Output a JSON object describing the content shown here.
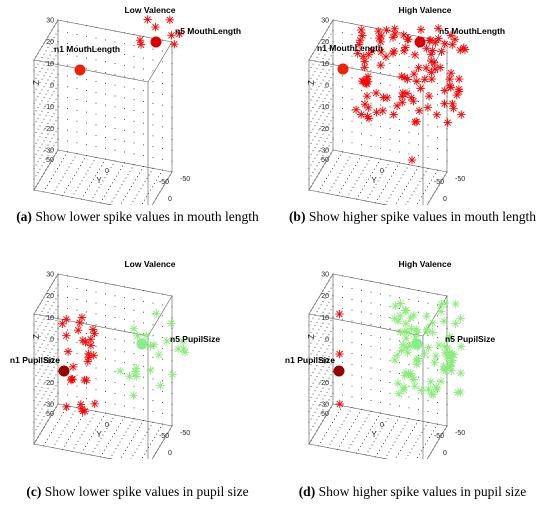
{
  "chart_data": [
    {
      "type": "scatter",
      "panel_label": "(a)",
      "caption": "Show lower spike values in mouth length",
      "title": "Low Valence",
      "xlabel": "X",
      "ylabel": "Y",
      "zlabel": "Z",
      "xlim": [
        -50,
        50
      ],
      "ylim": [
        -50,
        50
      ],
      "zlim": [
        -30,
        30
      ],
      "x_ticks": [
        "-50",
        "0",
        "50"
      ],
      "y_ticks": [
        "50",
        "0",
        "-50"
      ],
      "z_ticks": [
        "30",
        "20",
        "10",
        "0",
        "-10",
        "-20",
        "-30"
      ],
      "grid_points": true,
      "markers": [
        {
          "label": "n1 MouthLength",
          "x": -35,
          "y": 40,
          "z": 30,
          "size": "large",
          "color": "#ee2200"
        },
        {
          "label": "n5 MouthLength",
          "x": 15,
          "y": -10,
          "z": 30,
          "size": "large",
          "color": "#dd0000"
        }
      ],
      "spikes": {
        "color": "#ff0000",
        "count": 8,
        "region": "top-right"
      }
    },
    {
      "type": "scatter",
      "panel_label": "(b)",
      "caption": "Show higher spike values in mouth length",
      "title": "High Valence",
      "xlabel": "X",
      "ylabel": "Y",
      "zlabel": "Z",
      "xlim": [
        -50,
        50
      ],
      "ylim": [
        -50,
        50
      ],
      "zlim": [
        -30,
        30
      ],
      "x_ticks": [
        "-50",
        "0",
        "50"
      ],
      "y_ticks": [
        "50",
        "0",
        "-50"
      ],
      "z_ticks": [
        "30",
        "20",
        "10",
        "0",
        "-10",
        "-20",
        "-30"
      ],
      "grid_points": true,
      "markers": [
        {
          "label": "n1 MouthLength",
          "x": -35,
          "y": 40,
          "z": 30,
          "size": "large",
          "color": "#ee2200"
        },
        {
          "label": "n5 MouthLength",
          "x": 15,
          "y": -10,
          "z": 30,
          "size": "large",
          "color": "#dd0000"
        }
      ],
      "spikes": {
        "color": "#ff0000",
        "count": 110,
        "region": "upper-center"
      }
    },
    {
      "type": "scatter",
      "panel_label": "(c)",
      "caption": "Show lower spike values in pupil size",
      "title": "Low Valence",
      "xlabel": "X",
      "ylabel": "Y",
      "zlabel": "Z",
      "xlim": [
        -50,
        50
      ],
      "ylim": [
        -50,
        50
      ],
      "zlim": [
        -30,
        30
      ],
      "x_ticks": [
        "-50",
        "0",
        "50"
      ],
      "y_ticks": [
        "50",
        "0",
        "-50"
      ],
      "z_ticks": [
        "30",
        "20",
        "10",
        "0",
        "-10",
        "-20",
        "-30"
      ],
      "grid_points": true,
      "markers": [
        {
          "label": "n1 PupilSize",
          "x": -50,
          "y": 50,
          "z": 0,
          "size": "large",
          "color": "#990000"
        },
        {
          "label": "n5 PupilSize",
          "x": 0,
          "y": 0,
          "z": 10,
          "size": "large",
          "color": "#88ee88"
        }
      ],
      "spikes": {
        "color": "#ff0000",
        "count": 30,
        "region": "left-edge"
      },
      "spikes2": {
        "color": "#88ee77",
        "count": 22,
        "region": "center"
      }
    },
    {
      "type": "scatter",
      "panel_label": "(d)",
      "caption": "Show higher spike values in pupil size",
      "title": "High Valence",
      "xlabel": "X",
      "ylabel": "Y",
      "zlabel": "Z",
      "xlim": [
        -50,
        50
      ],
      "ylim": [
        -50,
        50
      ],
      "zlim": [
        -30,
        30
      ],
      "x_ticks": [
        "-50",
        "0",
        "50"
      ],
      "y_ticks": [
        "50",
        "0",
        "-50"
      ],
      "z_ticks": [
        "30",
        "20",
        "10",
        "0",
        "-10",
        "-20",
        "-30"
      ],
      "grid_points": true,
      "markers": [
        {
          "label": "n1 PupilSize",
          "x": -50,
          "y": 50,
          "z": 0,
          "size": "large",
          "color": "#990000"
        },
        {
          "label": "n5 PupilSize",
          "x": 0,
          "y": 0,
          "z": 10,
          "size": "large",
          "color": "#88ee88"
        }
      ],
      "spikes": {
        "color": "#ff0000",
        "count": 3,
        "region": "left-edge"
      },
      "spikes2": {
        "color": "#88ee77",
        "count": 90,
        "region": "center"
      }
    }
  ]
}
